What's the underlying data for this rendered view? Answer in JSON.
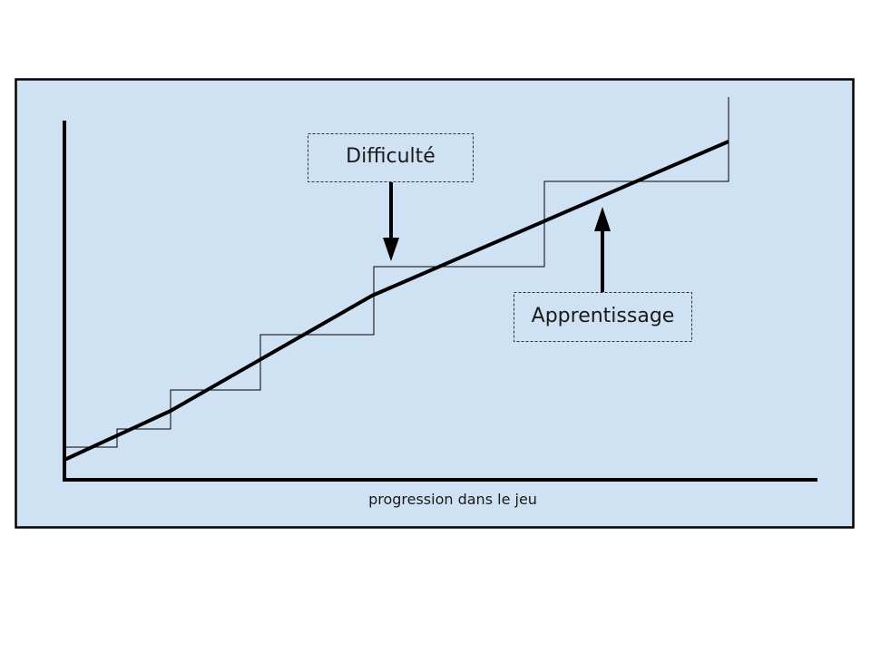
{
  "diagram": {
    "labels": {
      "difficulty": "Difficulté",
      "learning": "Apprentissage",
      "x_axis": "progression dans le jeu"
    },
    "colors": {
      "panel_background": "#cfe2f3",
      "panel_border": "#000000",
      "lines": "#000000"
    }
  }
}
